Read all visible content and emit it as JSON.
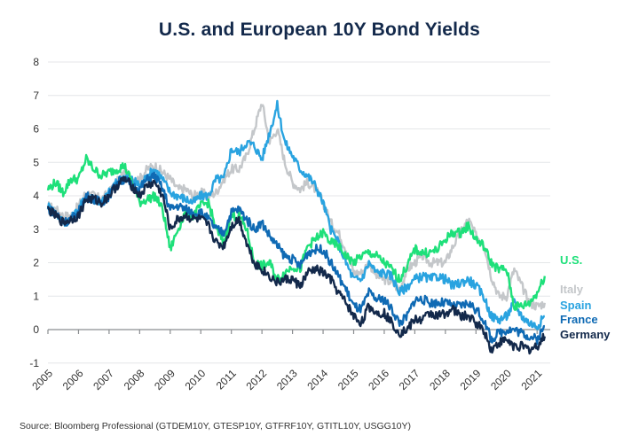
{
  "chart_data": {
    "type": "line",
    "title": "U.S. and European 10Y Bond Yields",
    "xlabel": "",
    "ylabel": "",
    "source": "Source: Bloomberg Professional (GTDEM10Y, GTESP10Y, GTFRF10Y, GTITL10Y, USGG10Y)",
    "ylim": [
      -1,
      8
    ],
    "yticks": [
      "8",
      "7",
      "6",
      "5",
      "4",
      "3",
      "2",
      "1",
      "0",
      "-1"
    ],
    "xlim": [
      2005,
      2021.3
    ],
    "xticks": [
      "2005",
      "2006",
      "2007",
      "2008",
      "2009",
      "2010",
      "2011",
      "2012",
      "2013",
      "2014",
      "2015",
      "2016",
      "2017",
      "2018",
      "2019",
      "2020",
      "2021"
    ],
    "grid": true,
    "legend_position": "right-end-labels",
    "x": [
      2005.0,
      2005.25,
      2005.5,
      2005.75,
      2006.0,
      2006.25,
      2006.5,
      2006.75,
      2007.0,
      2007.25,
      2007.5,
      2007.75,
      2008.0,
      2008.25,
      2008.5,
      2008.75,
      2009.0,
      2009.25,
      2009.5,
      2009.75,
      2010.0,
      2010.25,
      2010.5,
      2010.75,
      2011.0,
      2011.25,
      2011.5,
      2011.75,
      2012.0,
      2012.25,
      2012.5,
      2012.75,
      2013.0,
      2013.25,
      2013.5,
      2013.75,
      2014.0,
      2014.25,
      2014.5,
      2014.75,
      2015.0,
      2015.25,
      2015.5,
      2015.75,
      2016.0,
      2016.25,
      2016.5,
      2016.75,
      2017.0,
      2017.25,
      2017.5,
      2017.75,
      2018.0,
      2018.25,
      2018.5,
      2018.75,
      2019.0,
      2019.25,
      2019.5,
      2019.75,
      2020.0,
      2020.25,
      2020.5,
      2020.75,
      2021.0,
      2021.25
    ],
    "series": [
      {
        "name": "U.S.",
        "color": "#1ee07a",
        "values": [
          4.2,
          4.4,
          4.1,
          4.5,
          4.5,
          5.1,
          4.8,
          4.6,
          4.7,
          4.8,
          4.9,
          4.4,
          3.8,
          3.9,
          4.0,
          3.6,
          2.4,
          3.0,
          3.5,
          3.4,
          3.7,
          3.8,
          3.0,
          2.6,
          3.4,
          3.4,
          3.0,
          2.0,
          1.9,
          2.0,
          1.5,
          1.7,
          1.9,
          1.8,
          2.5,
          2.7,
          2.9,
          2.6,
          2.5,
          2.2,
          2.0,
          2.2,
          2.3,
          2.2,
          2.0,
          1.8,
          1.5,
          1.9,
          2.4,
          2.3,
          2.3,
          2.4,
          2.7,
          2.9,
          2.9,
          3.1,
          2.7,
          2.5,
          2.0,
          1.8,
          1.8,
          0.7,
          0.7,
          0.8,
          1.1,
          1.6
        ]
      },
      {
        "name": "Italy",
        "color": "#c4c7ca",
        "values": [
          3.7,
          3.6,
          3.4,
          3.4,
          3.7,
          4.1,
          4.0,
          3.9,
          4.1,
          4.4,
          4.7,
          4.5,
          4.5,
          4.8,
          4.9,
          4.7,
          4.5,
          4.2,
          4.2,
          4.0,
          4.1,
          4.0,
          4.1,
          4.5,
          4.8,
          4.8,
          5.2,
          6.0,
          6.8,
          5.6,
          6.0,
          5.0,
          4.4,
          4.2,
          4.4,
          4.2,
          3.8,
          3.2,
          2.9,
          2.4,
          1.7,
          1.7,
          2.0,
          1.6,
          1.5,
          1.4,
          1.2,
          1.8,
          2.0,
          2.2,
          2.0,
          2.0,
          2.0,
          2.5,
          2.9,
          3.3,
          2.8,
          2.6,
          1.6,
          1.0,
          1.0,
          1.8,
          1.3,
          0.8,
          0.7,
          0.8
        ]
      },
      {
        "name": "Spain",
        "color": "#29a3e0",
        "values": [
          3.7,
          3.5,
          3.2,
          3.3,
          3.6,
          4.0,
          3.9,
          3.8,
          4.1,
          4.4,
          4.6,
          4.5,
          4.3,
          4.6,
          4.8,
          4.5,
          4.1,
          4.0,
          3.9,
          3.8,
          4.0,
          4.0,
          4.5,
          4.5,
          5.4,
          5.3,
          5.6,
          5.5,
          5.1,
          5.9,
          6.7,
          5.6,
          5.2,
          4.8,
          4.6,
          4.3,
          3.8,
          3.0,
          2.6,
          2.0,
          1.5,
          1.5,
          2.0,
          1.7,
          1.7,
          1.6,
          1.1,
          1.3,
          1.5,
          1.6,
          1.5,
          1.6,
          1.5,
          1.3,
          1.4,
          1.5,
          1.3,
          1.0,
          0.4,
          0.3,
          0.4,
          0.8,
          0.4,
          0.2,
          0.1,
          0.4
        ]
      },
      {
        "name": "France",
        "color": "#0f6ab4",
        "values": [
          3.6,
          3.5,
          3.2,
          3.3,
          3.5,
          4.0,
          3.9,
          3.8,
          4.0,
          4.4,
          4.5,
          4.3,
          4.2,
          4.5,
          4.6,
          4.2,
          3.6,
          3.7,
          3.6,
          3.5,
          3.5,
          3.3,
          3.0,
          2.9,
          3.5,
          3.6,
          3.3,
          3.0,
          3.2,
          2.8,
          2.5,
          2.2,
          2.1,
          1.9,
          2.3,
          2.4,
          2.4,
          2.0,
          1.6,
          1.2,
          0.7,
          0.6,
          1.1,
          0.9,
          0.9,
          0.6,
          0.2,
          0.4,
          0.9,
          0.9,
          0.8,
          0.8,
          0.8,
          0.7,
          0.7,
          0.8,
          0.6,
          0.3,
          -0.3,
          -0.1,
          0.0,
          0.0,
          -0.1,
          -0.2,
          -0.3,
          0.1
        ]
      },
      {
        "name": "Germany",
        "color": "#13294b",
        "values": [
          3.6,
          3.4,
          3.2,
          3.3,
          3.4,
          3.9,
          3.9,
          3.8,
          4.0,
          4.3,
          4.5,
          4.3,
          4.0,
          4.3,
          4.4,
          4.0,
          3.0,
          3.3,
          3.4,
          3.3,
          3.3,
          3.1,
          2.6,
          2.5,
          3.1,
          3.3,
          2.6,
          2.0,
          1.8,
          1.6,
          1.4,
          1.5,
          1.5,
          1.3,
          1.7,
          1.8,
          1.7,
          1.5,
          1.1,
          0.8,
          0.4,
          0.2,
          0.7,
          0.5,
          0.5,
          0.2,
          -0.1,
          0.0,
          0.3,
          0.3,
          0.5,
          0.4,
          0.5,
          0.6,
          0.4,
          0.4,
          0.2,
          0.0,
          -0.6,
          -0.4,
          -0.3,
          -0.5,
          -0.5,
          -0.6,
          -0.5,
          -0.2
        ]
      }
    ]
  }
}
